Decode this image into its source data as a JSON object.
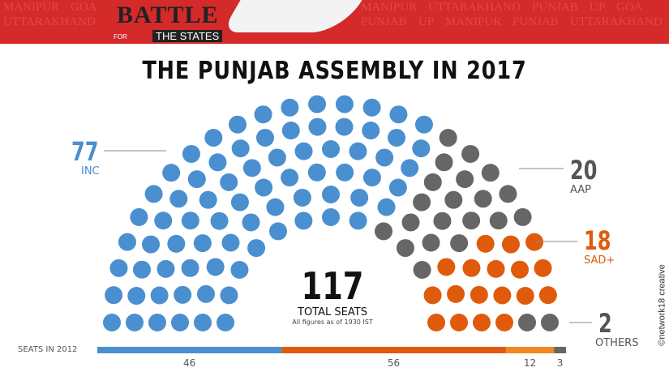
{
  "banner": {
    "logo_text": "BATTLE",
    "logo_sub": "THE STATES",
    "logo_for": "FOR",
    "bg_words": [
      "MANIPUR",
      "GOA",
      "MANIPUR",
      "UTTARAKHAND",
      "PUNJAB",
      "UP",
      "GOA",
      "UTTARAKHAND",
      "PUNJAB",
      "UP",
      "MANIPUR",
      "PUNJAB",
      "UTTARAKHAND"
    ]
  },
  "credit": "©network18 creative",
  "chart_data": {
    "type": "parliament",
    "title": "THE PUNJAB ASSEMBLY IN 2017",
    "total": "117",
    "total_label": "TOTAL SEATS",
    "note": "All figures as of 1930 IST",
    "parties": [
      {
        "name": "INC",
        "seats": 77,
        "color": "#4a8fcf"
      },
      {
        "name": "AAP",
        "seats": 20,
        "color": "#666666"
      },
      {
        "name": "SAD+",
        "seats": 18,
        "color": "#e05a0c"
      },
      {
        "name": "OTHERS",
        "seats": 2,
        "color": "#666666"
      }
    ],
    "seats_2012": {
      "label": "SEATS IN 2012",
      "values": [
        46,
        56,
        12,
        3
      ],
      "colors": [
        "#4a8fcf",
        "#e05a0c",
        "#f5861f",
        "#666666"
      ]
    }
  }
}
